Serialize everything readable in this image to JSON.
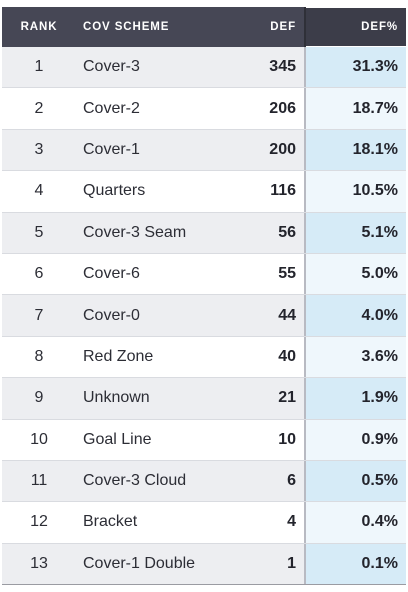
{
  "table": {
    "headers": {
      "rank": "RANK",
      "scheme": "COV SCHEME",
      "def": "DEF",
      "pct": "DEF%"
    },
    "rows": [
      {
        "rank": "1",
        "scheme": "Cover-3",
        "def": "345",
        "pct": "31.3%",
        "pct_value": 31.3
      },
      {
        "rank": "2",
        "scheme": "Cover-2",
        "def": "206",
        "pct": "18.7%",
        "pct_value": 18.7
      },
      {
        "rank": "3",
        "scheme": "Cover-1",
        "def": "200",
        "pct": "18.1%",
        "pct_value": 18.1
      },
      {
        "rank": "4",
        "scheme": "Quarters",
        "def": "116",
        "pct": "10.5%",
        "pct_value": 10.5
      },
      {
        "rank": "5",
        "scheme": "Cover-3 Seam",
        "def": "56",
        "pct": "5.1%",
        "pct_value": 5.1
      },
      {
        "rank": "6",
        "scheme": "Cover-6",
        "def": "55",
        "pct": "5.0%",
        "pct_value": 5.0
      },
      {
        "rank": "7",
        "scheme": "Cover-0",
        "def": "44",
        "pct": "4.0%",
        "pct_value": 4.0
      },
      {
        "rank": "8",
        "scheme": "Red Zone",
        "def": "40",
        "pct": "3.6%",
        "pct_value": 3.6
      },
      {
        "rank": "9",
        "scheme": "Unknown",
        "def": "21",
        "pct": "1.9%",
        "pct_value": 1.9
      },
      {
        "rank": "10",
        "scheme": "Goal Line",
        "def": "10",
        "pct": "0.9%",
        "pct_value": 0.9
      },
      {
        "rank": "11",
        "scheme": "Cover-3 Cloud",
        "def": "6",
        "pct": "0.5%",
        "pct_value": 0.5
      },
      {
        "rank": "12",
        "scheme": "Bracket",
        "def": "4",
        "pct": "0.4%",
        "pct_value": 0.4
      },
      {
        "rank": "13",
        "scheme": "Cover-1 Double",
        "def": "1",
        "pct": "0.1%",
        "pct_value": 0.1
      }
    ]
  },
  "colors": {
    "header_bg": "#464755",
    "pct_shade_odd": "#d6ebf7",
    "pct_shade_even": "#eff7fc",
    "row_alt_bg": "#edeef1"
  }
}
